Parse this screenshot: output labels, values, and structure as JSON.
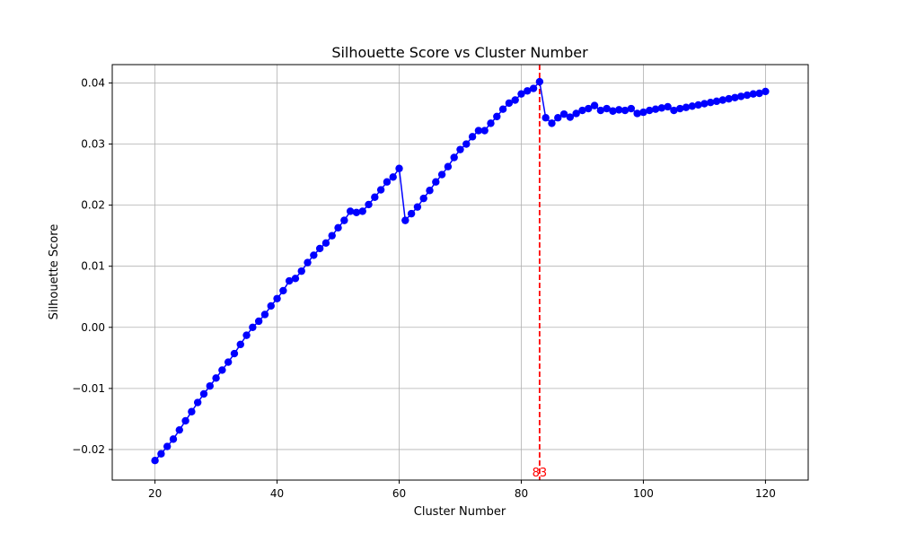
{
  "chart_data": {
    "type": "line",
    "title": "Silhouette Score vs Cluster Number",
    "xlabel": "Cluster Number",
    "ylabel": "Silhouette Score",
    "xlim": [
      13,
      127
    ],
    "ylim": [
      -0.025,
      0.043
    ],
    "xticks": [
      20,
      40,
      60,
      80,
      100,
      120
    ],
    "yticks": [
      -0.02,
      -0.01,
      0.0,
      0.01,
      0.02,
      0.03,
      0.04
    ],
    "ytick_labels": [
      "−0.02",
      "−0.01",
      "0.00",
      "0.01",
      "0.02",
      "0.03",
      "0.04"
    ],
    "grid": true,
    "legend": "none",
    "series": [
      {
        "color": "#0000ff",
        "marker": "circle",
        "x": [
          20,
          21,
          22,
          23,
          24,
          25,
          26,
          27,
          28,
          29,
          30,
          31,
          32,
          33,
          34,
          35,
          36,
          37,
          38,
          39,
          40,
          41,
          42,
          43,
          44,
          45,
          46,
          47,
          48,
          49,
          50,
          51,
          52,
          53,
          54,
          55,
          56,
          57,
          58,
          59,
          60,
          61,
          62,
          63,
          64,
          65,
          66,
          67,
          68,
          69,
          70,
          71,
          72,
          73,
          74,
          75,
          76,
          77,
          78,
          79,
          80,
          81,
          82,
          83,
          84,
          85,
          86,
          87,
          88,
          89,
          90,
          91,
          92,
          93,
          94,
          95,
          96,
          97,
          98,
          99,
          100,
          101,
          102,
          103,
          104,
          105,
          106,
          107,
          108,
          109,
          110,
          111,
          112,
          113,
          114,
          115,
          116,
          117,
          118,
          119,
          120
        ],
        "y": [
          -0.0218,
          -0.0207,
          -0.0195,
          -0.0183,
          -0.0168,
          -0.0153,
          -0.0138,
          -0.0123,
          -0.0109,
          -0.0096,
          -0.0083,
          -0.007,
          -0.0057,
          -0.0043,
          -0.0028,
          -0.0013,
          0.0,
          0.001,
          0.0021,
          0.0035,
          0.0047,
          0.006,
          0.0076,
          0.008,
          0.0092,
          0.0106,
          0.0118,
          0.0129,
          0.0138,
          0.015,
          0.0163,
          0.0175,
          0.019,
          0.0188,
          0.019,
          0.0201,
          0.0213,
          0.0225,
          0.0238,
          0.0246,
          0.026,
          0.0175,
          0.0186,
          0.0197,
          0.0211,
          0.0224,
          0.0238,
          0.025,
          0.0263,
          0.0278,
          0.0291,
          0.03,
          0.0312,
          0.0322,
          0.0322,
          0.0334,
          0.0345,
          0.0357,
          0.0367,
          0.0372,
          0.0382,
          0.0387,
          0.0391,
          0.0402,
          0.0343,
          0.0334,
          0.0343,
          0.0349,
          0.0344,
          0.035,
          0.0355,
          0.0358,
          0.0363,
          0.0355,
          0.0358,
          0.0354,
          0.0356,
          0.0355,
          0.0358,
          0.035,
          0.0352,
          0.0355,
          0.0357,
          0.0359,
          0.0361,
          0.0355,
          0.0358,
          0.036,
          0.0362,
          0.0364,
          0.0366,
          0.0368,
          0.037,
          0.0372,
          0.0374,
          0.0376,
          0.0378,
          0.038,
          0.0382,
          0.0383,
          0.0386
        ]
      }
    ],
    "vline": {
      "x": 83,
      "color": "#ff0000",
      "style": "dashed",
      "label": "83"
    }
  }
}
